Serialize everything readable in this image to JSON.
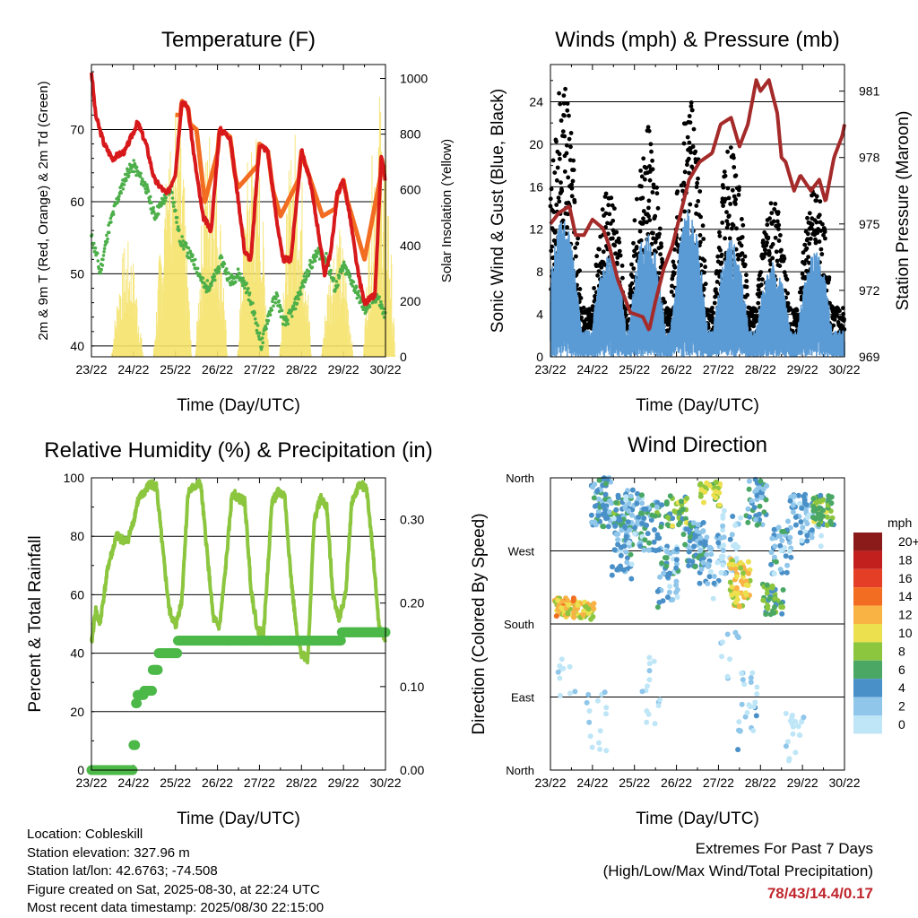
{
  "panels": {
    "temperature": {
      "title": "Temperature (F)",
      "xlabel": "Time (Day/UTC)",
      "ylabel_left": "2m & 9m T (Red, Orange) & 2m Td (Green)",
      "ylabel_right": "Solar Insolation (Yellow)"
    },
    "winds": {
      "title": "Winds (mph) & Pressure (mb)",
      "xlabel": "Time (Day/UTC)",
      "ylabel_left": "Sonic Wind & Gust (Blue, Black)",
      "ylabel_right": "Station Pressure (Maroon)"
    },
    "humidity": {
      "title": "Relative Humidity (%) & Precipitation (in)",
      "xlabel": "Time (Day/UTC)",
      "ylabel_left": "Percent & Total Rainfall"
    },
    "direction": {
      "title": "Wind Direction",
      "xlabel": "Time (Day/UTC)",
      "ylabel_left": "Direction (Colored By Speed)",
      "legend_title": "mph"
    }
  },
  "station": {
    "location": "Location: Cobleskill",
    "elevation": "Station elevation: 327.96 m",
    "latlon": "Station lat/lon: 42.6763; -74.508",
    "created": "Figure created on Sat, 2025-08-30, at 22:24 UTC",
    "recent": "Most recent data timestamp: 2025/08/30 22:15:00"
  },
  "extremes": {
    "line1": "Extremes For Past 7 Days",
    "line2": "(High/Low/Max Wind/Total Precipitation)",
    "values": "78/43/14.4/0.17"
  },
  "chart_data": [
    {
      "type": "line",
      "title": "Temperature (F)",
      "xlabel": "Time (Day/UTC)",
      "x_ticks": [
        "23/22",
        "24/22",
        "25/22",
        "26/22",
        "27/22",
        "28/22",
        "29/22",
        "30/22"
      ],
      "ylim": [
        38.5,
        79
      ],
      "yticks": [
        40,
        50,
        60,
        70
      ],
      "y2lim": [
        0,
        1050
      ],
      "y2ticks": [
        "0",
        "200",
        "400",
        "600",
        "800",
        "1000"
      ],
      "grid": true,
      "series": [
        {
          "name": "2m T",
          "color": "#d7191c",
          "axis": "left",
          "points": [
            [
              0,
              78
            ],
            [
              0.1,
              72
            ],
            [
              0.3,
              68
            ],
            [
              0.5,
              66
            ],
            [
              0.8,
              67
            ],
            [
              1.1,
              71
            ],
            [
              1.3,
              68
            ],
            [
              1.5,
              63
            ],
            [
              1.8,
              61
            ],
            [
              2.0,
              64
            ],
            [
              2.15,
              74
            ],
            [
              2.3,
              73
            ],
            [
              2.45,
              66
            ],
            [
              2.65,
              58
            ],
            [
              2.85,
              56
            ],
            [
              3.05,
              70
            ],
            [
              3.3,
              69
            ],
            [
              3.5,
              60
            ],
            [
              3.65,
              53
            ],
            [
              3.8,
              52
            ],
            [
              4.0,
              68
            ],
            [
              4.2,
              67
            ],
            [
              4.4,
              58
            ],
            [
              4.55,
              52
            ],
            [
              4.75,
              52
            ],
            [
              5.0,
              67
            ],
            [
              5.2,
              63
            ],
            [
              5.4,
              56
            ],
            [
              5.55,
              50
            ],
            [
              5.7,
              53
            ],
            [
              5.85,
              61
            ],
            [
              6.0,
              63
            ],
            [
              6.15,
              58
            ],
            [
              6.35,
              50
            ],
            [
              6.5,
              46
            ],
            [
              6.75,
              47
            ],
            [
              6.9,
              66
            ],
            [
              7,
              63
            ]
          ]
        },
        {
          "name": "9m T",
          "color": "#f26d21",
          "axis": "left",
          "points": [
            [
              2.1,
              72
            ],
            [
              2.5,
              70
            ],
            [
              2.7,
              60
            ],
            [
              3.1,
              69
            ],
            [
              3.5,
              62
            ],
            [
              4.1,
              66
            ],
            [
              4.5,
              58
            ],
            [
              5.1,
              65
            ],
            [
              5.5,
              58
            ],
            [
              6.1,
              60
            ],
            [
              6.5,
              52
            ],
            [
              6.9,
              64
            ]
          ]
        },
        {
          "name": "2m Td",
          "color": "#4daf4a",
          "axis": "left",
          "points": [
            [
              0,
              55
            ],
            [
              0.15,
              52
            ],
            [
              0.2,
              50
            ],
            [
              0.4,
              56
            ],
            [
              0.6,
              60
            ],
            [
              0.85,
              64
            ],
            [
              1.0,
              65
            ],
            [
              1.3,
              62
            ],
            [
              1.5,
              58
            ],
            [
              1.7,
              60
            ],
            [
              1.9,
              62
            ],
            [
              2.1,
              55
            ],
            [
              2.3,
              53
            ],
            [
              2.5,
              51
            ],
            [
              2.7,
              48
            ],
            [
              2.9,
              49
            ],
            [
              3.1,
              52
            ],
            [
              3.3,
              49
            ],
            [
              3.5,
              50
            ],
            [
              3.7,
              48
            ],
            [
              3.85,
              45
            ],
            [
              4.05,
              40
            ],
            [
              4.2,
              44
            ],
            [
              4.4,
              47
            ],
            [
              4.6,
              43
            ],
            [
              4.8,
              45
            ],
            [
              5.0,
              48
            ],
            [
              5.2,
              51
            ],
            [
              5.4,
              53
            ],
            [
              5.6,
              52
            ],
            [
              5.8,
              48
            ],
            [
              6.0,
              51
            ],
            [
              6.2,
              49
            ],
            [
              6.5,
              45
            ],
            [
              6.8,
              47
            ],
            [
              7,
              44
            ]
          ]
        },
        {
          "name": "Solar",
          "color": "#f5e26a",
          "axis": "right",
          "peaks": [
            [
              0.85,
              420
            ],
            [
              1.85,
              680
            ],
            [
              2.0,
              940
            ],
            [
              2.85,
              870
            ],
            [
              3.85,
              860
            ],
            [
              4.85,
              830
            ],
            [
              5.85,
              480
            ],
            [
              6.85,
              970
            ]
          ]
        }
      ]
    },
    {
      "type": "scatter",
      "title": "Winds (mph) & Pressure (mb)",
      "xlabel": "Time (Day/UTC)",
      "x_ticks": [
        "23/22",
        "24/22",
        "25/22",
        "26/22",
        "27/22",
        "28/22",
        "29/22",
        "30/22"
      ],
      "ylim": [
        0,
        27.5
      ],
      "yticks": [
        0,
        4,
        8,
        12,
        16,
        20,
        24
      ],
      "y2lim": [
        969,
        982.2
      ],
      "y2ticks": [
        969,
        972,
        975,
        978,
        981
      ],
      "grid": true,
      "series": [
        {
          "name": "Sonic Wind",
          "color": "#5b9bd5",
          "peaks": [
            [
              0.3,
              13
            ],
            [
              1.4,
              10
            ],
            [
              2.3,
              12
            ],
            [
              3.3,
              14
            ],
            [
              4.3,
              11
            ],
            [
              5.3,
              9
            ],
            [
              6.3,
              10
            ]
          ]
        },
        {
          "name": "Gust",
          "color": "#000000",
          "peaks": [
            [
              0.3,
              26
            ],
            [
              1.4,
              16
            ],
            [
              2.3,
              22
            ],
            [
              3.3,
              25
            ],
            [
              4.3,
              20
            ],
            [
              5.3,
              15
            ],
            [
              6.3,
              16
            ]
          ]
        },
        {
          "name": "Station Pressure",
          "color": "#a52a2a",
          "axis": "right",
          "points": [
            [
              0,
              975
            ],
            [
              0.2,
              975.5
            ],
            [
              0.45,
              975.8
            ],
            [
              0.6,
              974.5
            ],
            [
              0.8,
              974.5
            ],
            [
              1.0,
              975.2
            ],
            [
              1.25,
              974.8
            ],
            [
              1.4,
              974
            ],
            [
              1.6,
              972.5
            ],
            [
              1.9,
              971
            ],
            [
              2.2,
              970.8
            ],
            [
              2.35,
              970.2
            ],
            [
              2.5,
              971.5
            ],
            [
              2.7,
              973
            ],
            [
              2.9,
              974
            ],
            [
              3.1,
              975.5
            ],
            [
              3.3,
              977
            ],
            [
              3.55,
              977.8
            ],
            [
              3.85,
              978.2
            ],
            [
              4.05,
              979.5
            ],
            [
              4.3,
              979.8
            ],
            [
              4.5,
              978.5
            ],
            [
              4.7,
              979.5
            ],
            [
              4.9,
              981.5
            ],
            [
              5.0,
              981
            ],
            [
              5.2,
              981.5
            ],
            [
              5.4,
              980
            ],
            [
              5.5,
              978
            ],
            [
              5.6,
              977.8
            ],
            [
              5.8,
              976.5
            ],
            [
              5.95,
              977.2
            ],
            [
              6.2,
              976.5
            ],
            [
              6.4,
              977
            ],
            [
              6.55,
              976
            ],
            [
              6.75,
              978
            ],
            [
              6.95,
              979
            ],
            [
              7,
              979.5
            ]
          ]
        }
      ]
    },
    {
      "type": "line",
      "title": "Relative Humidity (%) & Precipitation (in)",
      "xlabel": "Time (Day/UTC)",
      "x_ticks": [
        "23/22",
        "24/22",
        "25/22",
        "26/22",
        "27/22",
        "28/22",
        "29/22",
        "30/22"
      ],
      "ylim": [
        0,
        100
      ],
      "yticks": [
        0,
        20,
        40,
        60,
        80,
        100
      ],
      "y2lim": [
        0,
        0.35
      ],
      "y2ticks": [
        "0.00",
        "0.10",
        "0.20",
        "0.30"
      ],
      "grid": true,
      "series": [
        {
          "name": "Relative Humidity",
          "color": "#8cc63f",
          "axis": "left",
          "points": [
            [
              0,
              43
            ],
            [
              0.1,
              55
            ],
            [
              0.2,
              50
            ],
            [
              0.4,
              70
            ],
            [
              0.6,
              80
            ],
            [
              0.85,
              78
            ],
            [
              1.0,
              85
            ],
            [
              1.1,
              92
            ],
            [
              1.25,
              95
            ],
            [
              1.4,
              98
            ],
            [
              1.55,
              97
            ],
            [
              1.7,
              75
            ],
            [
              1.85,
              55
            ],
            [
              2.0,
              49
            ],
            [
              2.15,
              58
            ],
            [
              2.3,
              95
            ],
            [
              2.45,
              97
            ],
            [
              2.6,
              98
            ],
            [
              2.75,
              75
            ],
            [
              2.9,
              52
            ],
            [
              3.05,
              49
            ],
            [
              3.2,
              70
            ],
            [
              3.35,
              95
            ],
            [
              3.5,
              93
            ],
            [
              3.65,
              92
            ],
            [
              3.8,
              62
            ],
            [
              3.95,
              48
            ],
            [
              4.1,
              47
            ],
            [
              4.3,
              92
            ],
            [
              4.45,
              95
            ],
            [
              4.6,
              94
            ],
            [
              4.75,
              66
            ],
            [
              4.9,
              45
            ],
            [
              5.0,
              40
            ],
            [
              5.15,
              38
            ],
            [
              5.3,
              85
            ],
            [
              5.45,
              93
            ],
            [
              5.6,
              90
            ],
            [
              5.75,
              60
            ],
            [
              5.9,
              52
            ],
            [
              6.05,
              60
            ],
            [
              6.2,
              92
            ],
            [
              6.4,
              98
            ],
            [
              6.55,
              96
            ],
            [
              6.7,
              75
            ],
            [
              6.85,
              48
            ],
            [
              7,
              45
            ]
          ]
        },
        {
          "name": "Precipitation",
          "color": "#4cb848",
          "axis": "right",
          "points": [
            [
              0,
              0
            ],
            [
              0.95,
              0
            ],
            [
              1.0,
              0.03
            ],
            [
              1.05,
              0.08
            ],
            [
              1.1,
              0.09
            ],
            [
              1.25,
              0.095
            ],
            [
              1.45,
              0.12
            ],
            [
              1.6,
              0.14
            ],
            [
              1.85,
              0.14
            ],
            [
              2.05,
              0.155
            ],
            [
              5.7,
              0.155
            ],
            [
              5.95,
              0.165
            ],
            [
              7,
              0.165
            ]
          ]
        }
      ]
    },
    {
      "type": "scatter",
      "title": "Wind Direction",
      "xlabel": "Time (Day/UTC)",
      "x_ticks": [
        "23/22",
        "24/22",
        "25/22",
        "26/22",
        "27/22",
        "28/22",
        "29/22",
        "30/22"
      ],
      "ylim": [
        0,
        360
      ],
      "yticks": [
        "North",
        "East",
        "South",
        "West",
        "North"
      ],
      "legend": {
        "title": "mph",
        "labels": [
          "0",
          "2",
          "4",
          "6",
          "8",
          "10",
          "12",
          "14",
          "16",
          "18",
          "20+"
        ],
        "colors": [
          "#bfe6f7",
          "#8fc6ea",
          "#4a90c8",
          "#4aa864",
          "#8cc63f",
          "#ece04f",
          "#f9b244",
          "#f26d21",
          "#e43f26",
          "#c21f1f",
          "#8b1a1a"
        ]
      },
      "grid": true
    }
  ]
}
